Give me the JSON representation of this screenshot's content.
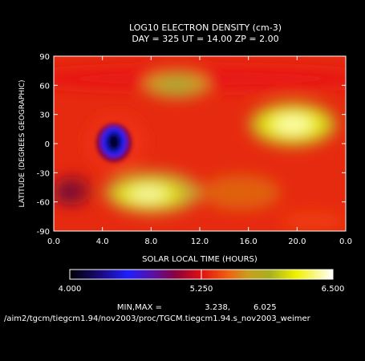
{
  "chart_data": {
    "type": "heatmap",
    "title": "LOG10 ELECTRON DENSITY (cm-3)",
    "subtitle": "DAY = 325   UT = 14.00   ZP =    2.00",
    "xlabel": "SOLAR LOCAL TIME (HOURS)",
    "ylabel": "LATITUDE (DEGREES GEOGRAPHIC)",
    "x_range": [
      0,
      24
    ],
    "y_range": [
      -90,
      90
    ],
    "x_ticks": [
      "0.0",
      "4.0",
      "8.0",
      "12.0",
      "16.0",
      "20.0",
      "0.0"
    ],
    "y_ticks": [
      "90",
      "60",
      "30",
      "0",
      "-30",
      "-60",
      "-90"
    ],
    "colorbar": {
      "min_label": "4.000",
      "mid_label": "5.250",
      "max_label": "6.500",
      "min": 4.0,
      "max": 6.5
    },
    "features": [
      {
        "name": "density minimum",
        "x_hour": 5.0,
        "y_lat": 5,
        "value": 3.238
      },
      {
        "name": "northern crest",
        "x_hour": 19.0,
        "y_lat": 20,
        "value": 6.0
      },
      {
        "name": "southern crest",
        "x_hour": 8.5,
        "y_lat": -50,
        "value": 6.0
      },
      {
        "name": "northern patch",
        "x_hour": 10.0,
        "y_lat": 55,
        "value": 5.7
      },
      {
        "name": "southern weak region",
        "x_hour": 1.0,
        "y_lat": -45,
        "value": 4.9
      }
    ],
    "min_max_label": "MIN,MAX =",
    "min_value": "3.238,",
    "max_value": "6.025",
    "footer_path": "/aim2/tgcm/tiegcm1.94/nov2003/proc/TGCM.tiegcm1.94.s_nov2003_weimer"
  }
}
